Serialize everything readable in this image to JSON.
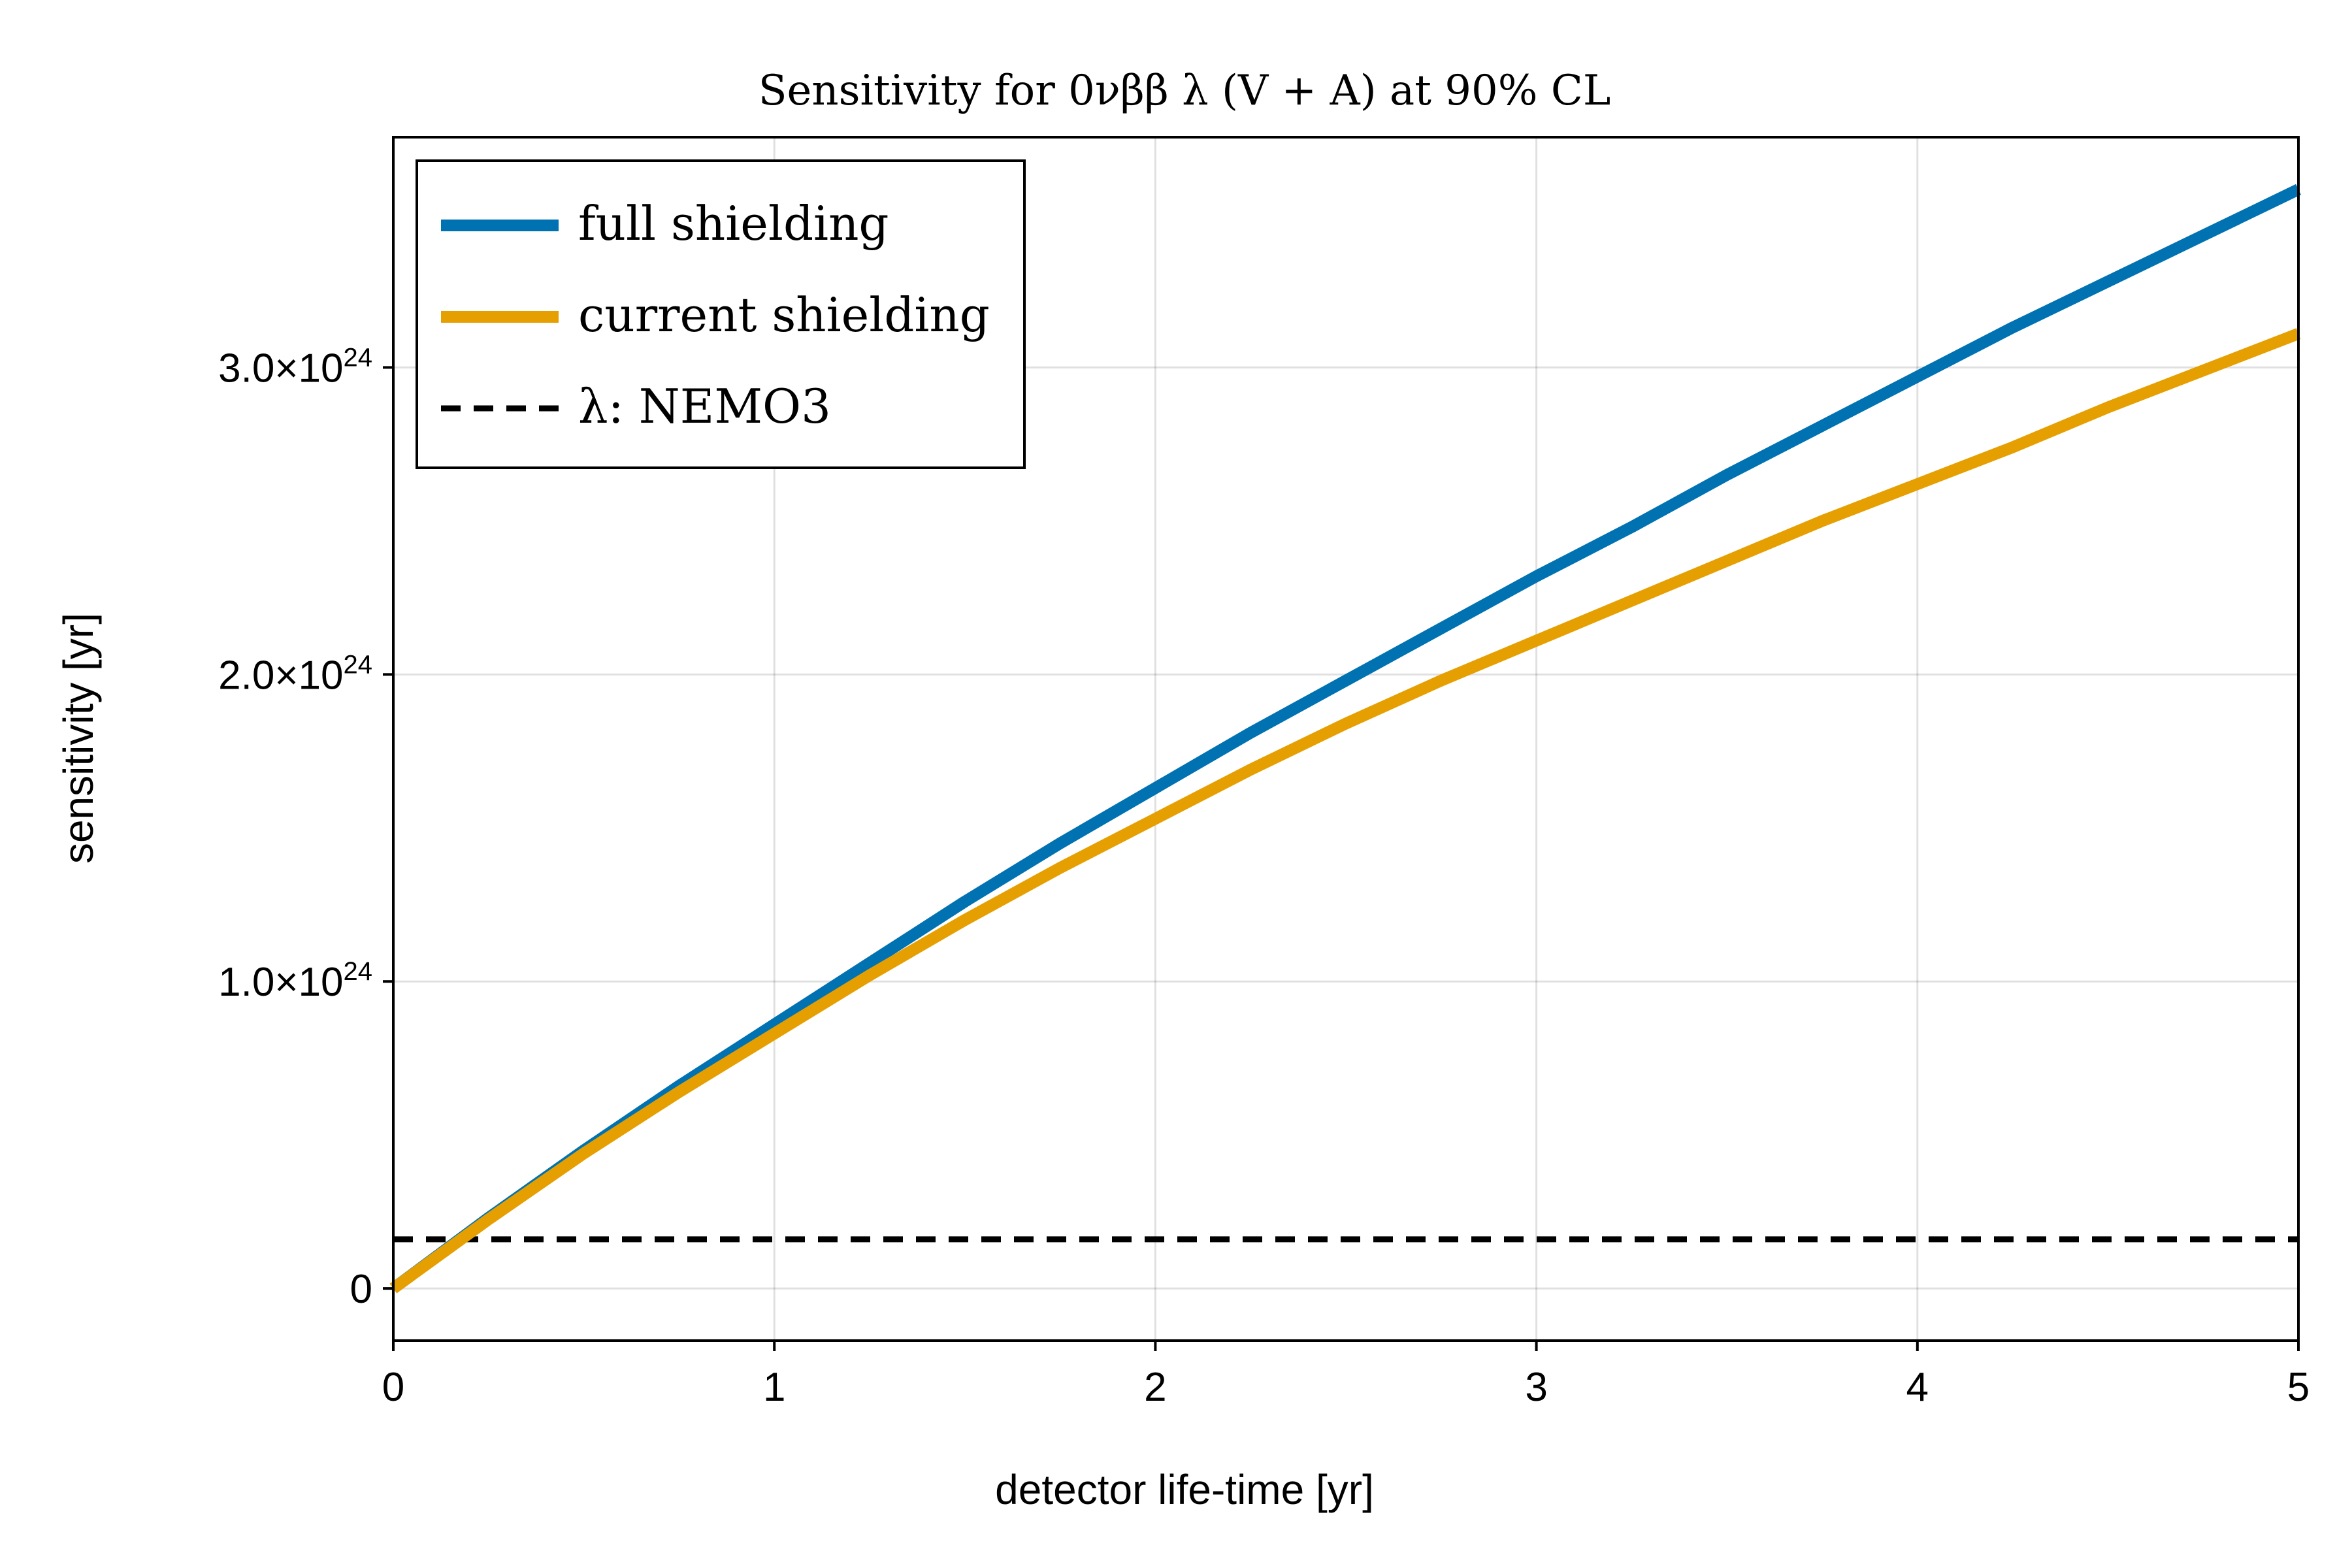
{
  "chart_data": {
    "type": "line",
    "title": "Sensitivity for 0νββ λ (V + A) at 90% CL",
    "xlabel": "detector life-time [yr]",
    "ylabel": "sensitivity [yr]",
    "xlim": [
      0,
      5
    ],
    "ylim": [
      -1.7e+23,
      3.75e+24
    ],
    "x_ticks": [
      {
        "value": 0,
        "label": "0"
      },
      {
        "value": 1,
        "label": "1"
      },
      {
        "value": 2,
        "label": "2"
      },
      {
        "value": 3,
        "label": "3"
      },
      {
        "value": 4,
        "label": "4"
      },
      {
        "value": 5,
        "label": "5"
      }
    ],
    "y_ticks": [
      {
        "value": 0,
        "mantissa": "0",
        "exponent": ""
      },
      {
        "value": 1e+24,
        "mantissa": "1.0×10",
        "exponent": "24"
      },
      {
        "value": 2e+24,
        "mantissa": "2.0×10",
        "exponent": "24"
      },
      {
        "value": 3e+24,
        "mantissa": "3.0×10",
        "exponent": "24"
      }
    ],
    "grid": true,
    "legend_position": "top-left",
    "x": [
      0,
      0.25,
      0.5,
      0.75,
      1.0,
      1.25,
      1.5,
      1.75,
      2.0,
      2.25,
      2.5,
      2.75,
      3.0,
      3.25,
      3.5,
      3.75,
      4.0,
      4.25,
      4.5,
      4.75,
      5.0
    ],
    "series": [
      {
        "name": "full shielding",
        "color": "#0072b2",
        "style": "solid",
        "values": [
          0,
          2.3e+23,
          4.5e+23,
          6.6e+23,
          8.6e+23,
          1.06e+24,
          1.26e+24,
          1.45e+24,
          1.63e+24,
          1.81e+24,
          1.98e+24,
          2.15e+24,
          2.32e+24,
          2.48e+24,
          2.65e+24,
          2.81e+24,
          2.97e+24,
          3.13e+24,
          3.28e+24,
          3.43e+24,
          3.58e+24
        ]
      },
      {
        "name": "current shielding",
        "color": "#e69f00",
        "style": "solid",
        "values": [
          0,
          2.25e+23,
          4.4e+23,
          6.4e+23,
          8.3e+23,
          1.02e+24,
          1.2e+24,
          1.37e+24,
          1.53e+24,
          1.69e+24,
          1.84e+24,
          1.98e+24,
          2.11e+24,
          2.24e+24,
          2.37e+24,
          2.5e+24,
          2.62e+24,
          2.74e+24,
          2.87e+24,
          2.99e+24,
          3.11e+24
        ]
      }
    ],
    "reference_line": {
      "name": "λ: NEMO3",
      "color": "#000000",
      "style": "dashed",
      "value": 1.6e+23
    }
  }
}
